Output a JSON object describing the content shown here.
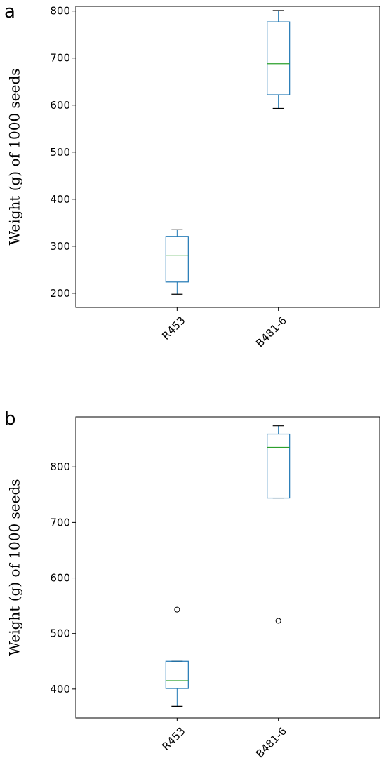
{
  "panels": [
    {
      "label": "a"
    },
    {
      "label": "b"
    }
  ],
  "chart_data": [
    {
      "type": "boxplot",
      "panel": "a",
      "ylabel": "Weight (g) of 1000 seeds",
      "categories": [
        "R453",
        "B481-6"
      ],
      "ylim": [
        170,
        810
      ],
      "yticks": [
        200,
        300,
        400,
        500,
        600,
        700,
        800
      ],
      "boxes": [
        {
          "category": "R453",
          "whisker_low": 198,
          "q1": 224,
          "median": 281,
          "q3": 321,
          "whisker_high": 335,
          "outliers": []
        },
        {
          "category": "B481-6",
          "whisker_low": 593,
          "q1": 622,
          "median": 688,
          "q3": 777,
          "whisker_high": 801,
          "outliers": []
        }
      ],
      "colors": {
        "box": "#1f77b4",
        "median": "#2ca02c",
        "whisker_cap": "#000000"
      }
    },
    {
      "type": "boxplot",
      "panel": "b",
      "ylabel": "Weight (g) of 1000 seeds",
      "categories": [
        "R453",
        "B481-6"
      ],
      "ylim": [
        348,
        890
      ],
      "yticks": [
        400,
        500,
        600,
        700,
        800
      ],
      "boxes": [
        {
          "category": "R453",
          "whisker_low": 369,
          "q1": 401,
          "median": 415,
          "q3": 450,
          "whisker_high": 450,
          "outliers": [
            543
          ]
        },
        {
          "category": "B481-6",
          "whisker_low": 744,
          "q1": 744,
          "median": 835,
          "q3": 859,
          "whisker_high": 874,
          "outliers": [
            523
          ]
        }
      ],
      "colors": {
        "box": "#1f77b4",
        "median": "#2ca02c",
        "whisker_cap": "#000000"
      }
    }
  ]
}
